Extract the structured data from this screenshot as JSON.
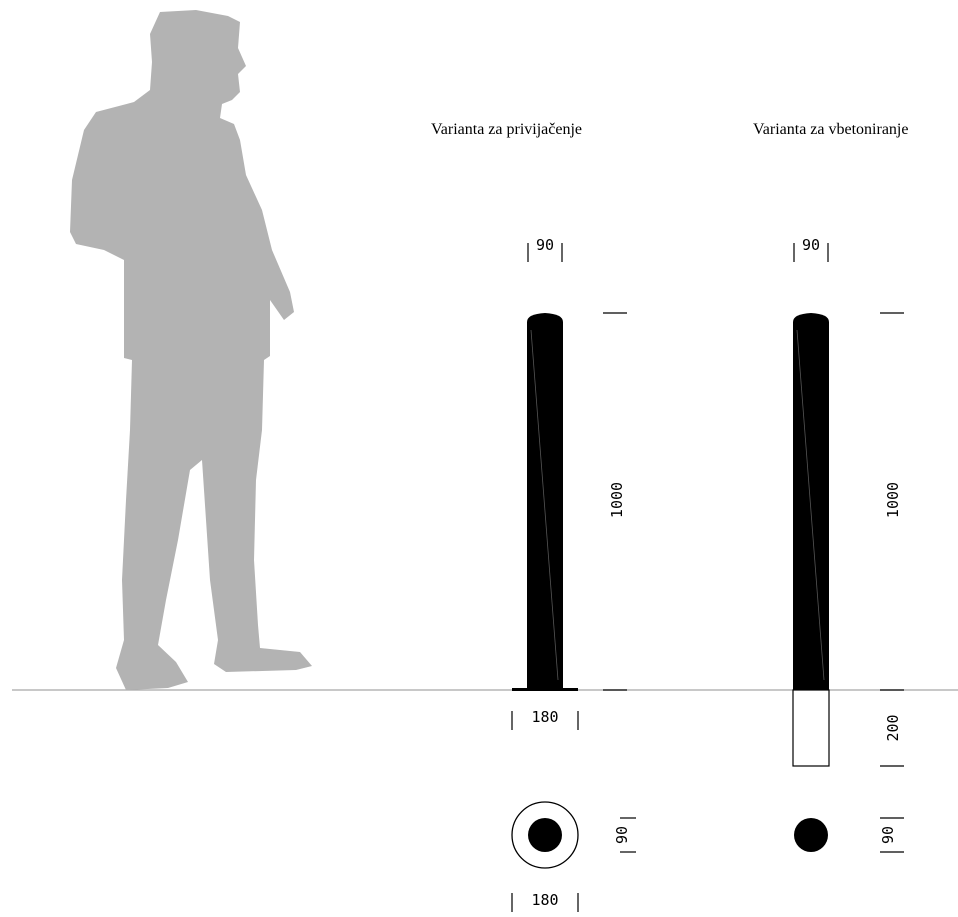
{
  "titles": {
    "left": "Varianta za privijačenje",
    "right": "Varianta za vbetoniranje"
  },
  "dimensions": {
    "left": {
      "top_width": "90",
      "height": "1000",
      "base_width": "180",
      "plan_circle": "90",
      "plan_outer": "180"
    },
    "right": {
      "top_width": "90",
      "height": "1000",
      "embed_depth": "200",
      "plan_circle": "90"
    }
  },
  "colors": {
    "post": "#000000",
    "person": "#b3b3b3",
    "ground": "#a8a8a8"
  }
}
